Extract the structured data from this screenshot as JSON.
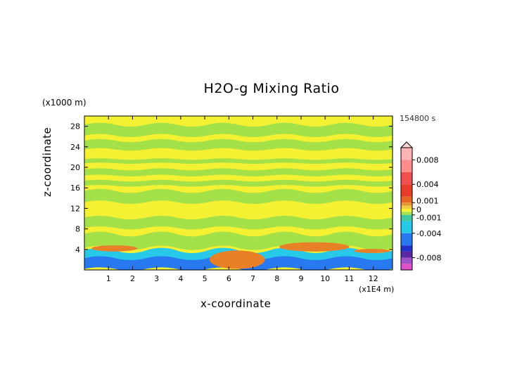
{
  "chart_data": {
    "type": "heatmap",
    "title": "H2O-g Mixing Ratio",
    "xlabel": "x-coordinate",
    "ylabel": "z-coordinate",
    "x_multiplier": "(x1E4 m)",
    "y_multiplier": "(x1000 m)",
    "time_label": "154800 s",
    "xlim": [
      0,
      12.8
    ],
    "ylim": [
      0,
      30
    ],
    "x_ticks": [
      1,
      2,
      3,
      4,
      5,
      6,
      7,
      8,
      9,
      10,
      11,
      12
    ],
    "y_ticks": [
      4,
      8,
      12,
      16,
      20,
      24,
      28
    ],
    "colorbar_labels": [
      "0.008",
      "0.004",
      "0.001",
      "0",
      "-0.001",
      "-0.004",
      "-0.008"
    ],
    "colorbar_values": [
      0.008,
      0.004,
      0.001,
      0,
      -0.001,
      -0.004,
      -0.008
    ],
    "colors": {
      "background_yellow": "#f4f032",
      "band_green": "#a4e048",
      "low_cyan": "#28c8e8",
      "low_blue": "#2878f0",
      "high_orange": "#e88028",
      "positive_red": "#f03c3c",
      "negative_magenta": "#ff3cb4"
    },
    "regions": [
      {
        "kind": "band",
        "color": "band_green",
        "x": [
          0,
          12.8
        ],
        "z": [
          28.3,
          26.2
        ]
      },
      {
        "kind": "band",
        "color": "band_green",
        "x": [
          0,
          12.8
        ],
        "z": [
          25.2,
          23.5
        ]
      },
      {
        "kind": "band",
        "color": "band_green",
        "x": [
          0,
          12.8
        ],
        "z": [
          21.6,
          20.8
        ]
      },
      {
        "kind": "band",
        "color": "band_green",
        "x": [
          0,
          12.8
        ],
        "z": [
          19.6,
          18.4
        ]
      },
      {
        "kind": "band",
        "color": "band_green",
        "x": [
          0,
          12.8
        ],
        "z": [
          17.4,
          16.4
        ]
      },
      {
        "kind": "band",
        "color": "band_green",
        "x": [
          0,
          12.8
        ],
        "z": [
          15.4,
          13.2
        ]
      },
      {
        "kind": "band",
        "color": "band_green",
        "x": [
          0,
          12.8
        ],
        "z": [
          10.2,
          8.2
        ]
      },
      {
        "kind": "band",
        "color": "band_green",
        "x": [
          0,
          12.8
        ],
        "z": [
          7.0,
          4.3
        ]
      },
      {
        "kind": "band",
        "color": "low_cyan",
        "x": [
          0,
          12.8
        ],
        "z": [
          3.8,
          0.9
        ]
      },
      {
        "kind": "band",
        "color": "low_blue",
        "x": [
          0,
          12.8
        ],
        "z": [
          2.3,
          0.2
        ]
      },
      {
        "kind": "blob",
        "color": "high_orange",
        "x": [
          0.3,
          2.2
        ],
        "z": [
          4.8,
          3.6
        ]
      },
      {
        "kind": "blob",
        "color": "high_orange",
        "x": [
          8.1,
          11.0
        ],
        "z": [
          5.4,
          3.6
        ]
      },
      {
        "kind": "blob",
        "color": "high_orange",
        "x": [
          5.2,
          7.5
        ],
        "z": [
          3.8,
          0.2
        ]
      },
      {
        "kind": "blob",
        "color": "high_orange",
        "x": [
          11.2,
          12.7
        ],
        "z": [
          4.1,
          3.3
        ]
      }
    ]
  }
}
